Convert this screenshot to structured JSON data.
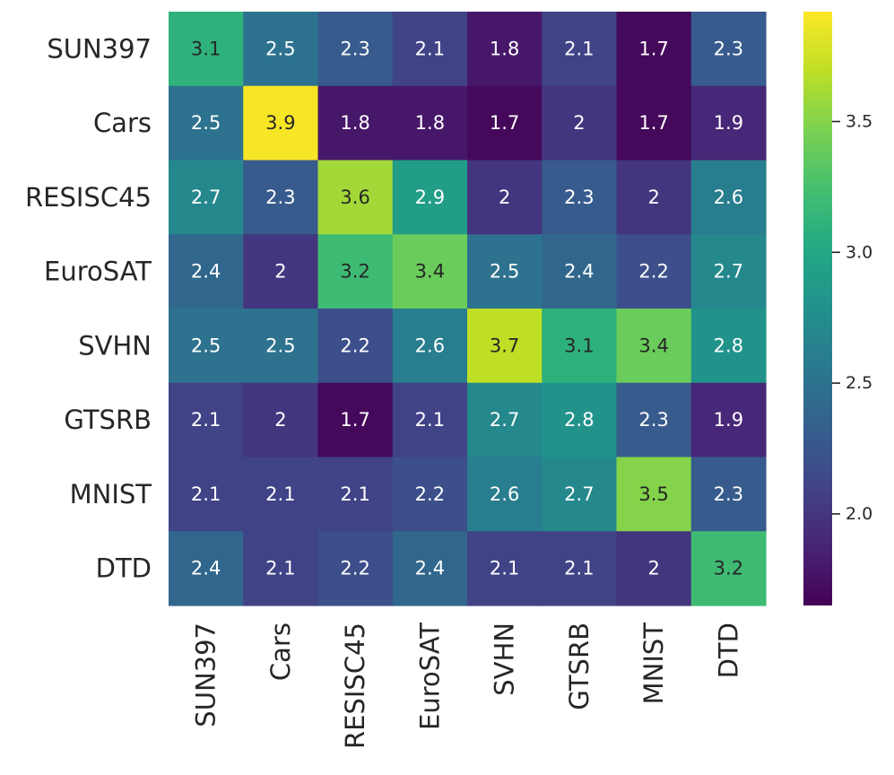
{
  "chart_data": {
    "type": "heatmap",
    "colormap": "viridis",
    "rows": [
      "SUN397",
      "Cars",
      "RESISC45",
      "EuroSAT",
      "SVHN",
      "GTSRB",
      "MNIST",
      "DTD"
    ],
    "columns": [
      "SUN397",
      "Cars",
      "RESISC45",
      "EuroSAT",
      "SVHN",
      "GTSRB",
      "MNIST",
      "DTD"
    ],
    "values": [
      [
        3.1,
        2.5,
        2.3,
        2.1,
        1.8,
        2.1,
        1.7,
        2.3
      ],
      [
        2.5,
        3.9,
        1.8,
        1.8,
        1.7,
        2.0,
        1.7,
        1.9
      ],
      [
        2.7,
        2.3,
        3.6,
        2.9,
        2.0,
        2.3,
        2.0,
        2.6
      ],
      [
        2.4,
        2.0,
        3.2,
        3.4,
        2.5,
        2.4,
        2.2,
        2.7
      ],
      [
        2.5,
        2.5,
        2.2,
        2.6,
        3.7,
        3.1,
        3.4,
        2.8
      ],
      [
        2.1,
        2.0,
        1.7,
        2.1,
        2.7,
        2.8,
        2.3,
        1.9
      ],
      [
        2.1,
        2.1,
        2.1,
        2.2,
        2.6,
        2.7,
        3.5,
        2.3
      ],
      [
        2.4,
        2.1,
        2.2,
        2.4,
        2.1,
        2.1,
        2.0,
        3.2
      ]
    ],
    "labels": [
      [
        "3.1",
        "2.5",
        "2.3",
        "2.1",
        "1.8",
        "2.1",
        "1.7",
        "2.3"
      ],
      [
        "2.5",
        "3.9",
        "1.8",
        "1.8",
        "1.7",
        "2",
        "1.7",
        "1.9"
      ],
      [
        "2.7",
        "2.3",
        "3.6",
        "2.9",
        "2",
        "2.3",
        "2",
        "2.6"
      ],
      [
        "2.4",
        "2",
        "3.2",
        "3.4",
        "2.5",
        "2.4",
        "2.2",
        "2.7"
      ],
      [
        "2.5",
        "2.5",
        "2.2",
        "2.6",
        "3.7",
        "3.1",
        "3.4",
        "2.8"
      ],
      [
        "2.1",
        "2",
        "1.7",
        "2.1",
        "2.7",
        "2.8",
        "2.3",
        "1.9"
      ],
      [
        "2.1",
        "2.1",
        "2.1",
        "2.2",
        "2.6",
        "2.7",
        "3.5",
        "2.3"
      ],
      [
        "2.4",
        "2.1",
        "2.2",
        "2.4",
        "2.1",
        "2.1",
        "2",
        "3.2"
      ]
    ],
    "colorbar": {
      "range": [
        1.65,
        3.92
      ],
      "ticks": [
        2.0,
        2.5,
        3.0,
        3.5
      ],
      "tick_labels": [
        "2.0",
        "2.5",
        "3.0",
        "3.5"
      ]
    },
    "title": "",
    "xlabel": "",
    "ylabel": ""
  }
}
